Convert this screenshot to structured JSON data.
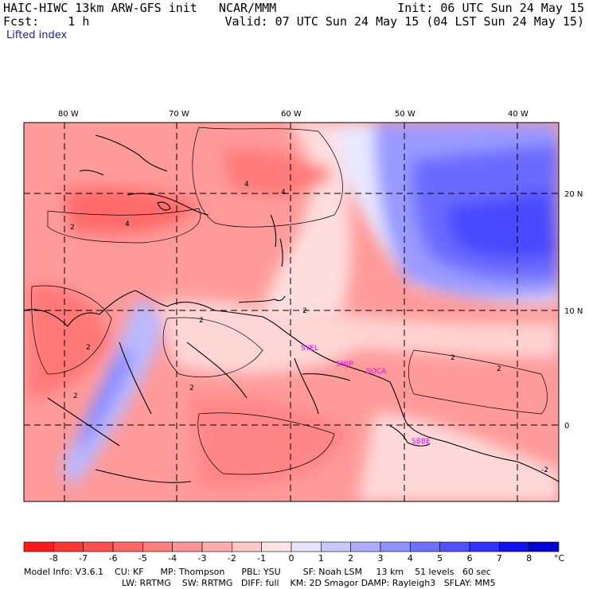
{
  "header": {
    "line1_left": "HAIC-HIWC 13km ARW-GFS init   NCAR/MMM",
    "line1_right": "Init: 06 UTC Sun 24 May 15",
    "line2_left": "Fcst:    1 h",
    "line2_right": "Valid: 07 UTC Sun 24 May 15 (04 LST Sun 24 May 15)",
    "field_name": "Lifted index"
  },
  "map": {
    "lon_labels": [
      "80 W",
      "70 W",
      "60 W",
      "50 W",
      "40 W"
    ],
    "lat_labels": [
      "20 N",
      "10 N",
      "0"
    ],
    "stations": [
      "SYEL",
      "SMJP",
      "SOCA",
      "SBBE"
    ],
    "contour_labels": [
      "4",
      "4",
      "2",
      "4",
      "2",
      "2",
      "2",
      "2",
      "2",
      "2",
      "2",
      "-2"
    ]
  },
  "colorbar": {
    "ticks": [
      "-8",
      "-7",
      "-6",
      "-5",
      "-4",
      "-3",
      "-2",
      "-1",
      "0",
      "1",
      "2",
      "3",
      "4",
      "5",
      "6",
      "7",
      "8"
    ],
    "unit": "°C",
    "colors": [
      "#ff1a1a",
      "#ff3636",
      "#ff5050",
      "#ff6666",
      "#ff7d7d",
      "#ff9494",
      "#ffadad",
      "#ffc8c8",
      "#ffe4e4",
      "#e4e4ff",
      "#c8c8ff",
      "#adadff",
      "#9090ff",
      "#7070ff",
      "#5050ff",
      "#3030ff",
      "#1010f0",
      "#0000d8"
    ]
  },
  "footer": {
    "line1": "Model Info: V3.6.1    CU: KF      MP: Thompson      PBL: YSU        SF: Noah LSM     13 km    51 levels   60 sec",
    "line2": "LW: RRTMG    SW: RRTMG   DIFF: full    KM: 2D Smagor DAMP: Rayleigh3   SFLAY: MM5"
  }
}
